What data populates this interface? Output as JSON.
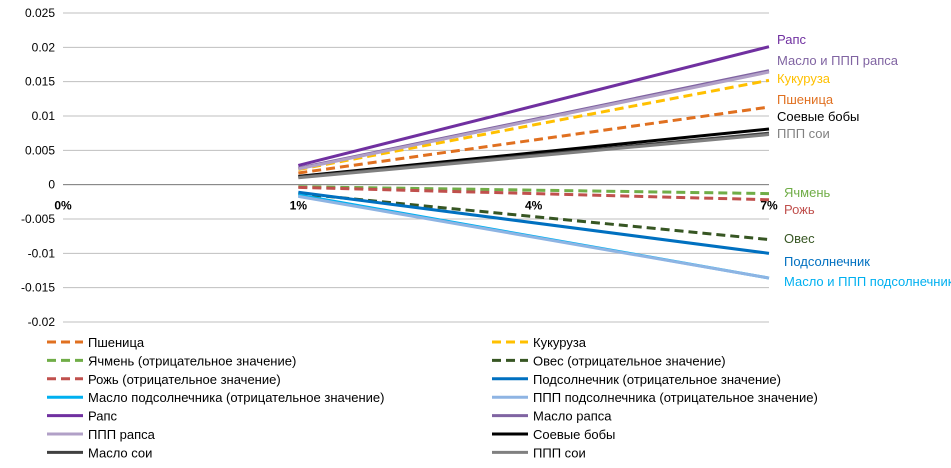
{
  "chart_data": {
    "type": "line",
    "categories": [
      "0%",
      "1%",
      "4%",
      "7%"
    ],
    "ylim": [
      -0.02,
      0.025
    ],
    "yticks": [
      "0.025",
      "0.02",
      "0.015",
      "0.01",
      "0.005",
      "0",
      "-0.005",
      "-0.01",
      "-0.015",
      "-0.02"
    ],
    "grid": true,
    "legend_position": "bottom",
    "series": [
      {
        "key": "wheat",
        "name": "Пшеница",
        "end_label": "Пшеница",
        "values": [
          null,
          0.0017,
          null,
          0.0113
        ],
        "color": "#E07020",
        "dash": "dash"
      },
      {
        "key": "corn",
        "name": "Кукуруза",
        "end_label": "Кукуруза",
        "values": [
          null,
          0.0022,
          null,
          0.0152
        ],
        "color": "#FFC000",
        "dash": "dash"
      },
      {
        "key": "barley",
        "name": "Ячмень (отрицательное значение)",
        "end_label": "Ячмень",
        "values": [
          null,
          -0.0003,
          null,
          -0.0013
        ],
        "color": "#70AD47",
        "dash": "dash"
      },
      {
        "key": "oats",
        "name": "Овес (отрицательное значение)",
        "end_label": "Овес",
        "values": [
          null,
          -0.0013,
          null,
          -0.008
        ],
        "color": "#375623",
        "dash": "dash"
      },
      {
        "key": "rye",
        "name": "Рожь (отрицательное значение)",
        "end_label": "Рожь",
        "values": [
          null,
          -0.0004,
          null,
          -0.0022
        ],
        "color": "#C0504D",
        "dash": "dash"
      },
      {
        "key": "sunflower",
        "name": "Подсолнечник (отрицательное значение)",
        "end_label": "Подсолнечник",
        "values": [
          null,
          -0.0011,
          null,
          -0.01
        ],
        "color": "#0070C0",
        "dash": "solid"
      },
      {
        "key": "sunoil",
        "name": "Масло подсолнечника (отрицательное значение)",
        "end_label": "Масло и ППП подсолнечника",
        "values": [
          null,
          -0.0015,
          null,
          -0.0136
        ],
        "color": "#00B0F0",
        "dash": "solid"
      },
      {
        "key": "sunmeal",
        "name": "ППП подсолнечника (отрицательное значение)",
        "end_label": "",
        "values": [
          null,
          -0.0017,
          null,
          -0.0136
        ],
        "color": "#8EB4E3",
        "dash": "solid"
      },
      {
        "key": "rapeseed",
        "name": "Рапс",
        "end_label": "Рапс",
        "values": [
          null,
          0.0028,
          null,
          0.0201
        ],
        "color": "#7030A0",
        "dash": "solid"
      },
      {
        "key": "rapeoil",
        "name": "Масло рапса",
        "end_label": "Масло и ППП рапса",
        "values": [
          null,
          0.0024,
          null,
          0.0166
        ],
        "color": "#8064A2",
        "dash": "solid"
      },
      {
        "key": "rapemeal",
        "name": "ППП рапса",
        "end_label": "",
        "values": [
          null,
          0.0023,
          null,
          0.0164
        ],
        "color": "#B1A0C7",
        "dash": "solid"
      },
      {
        "key": "soy",
        "name": "Соевые бобы",
        "end_label": "Соевые бобы",
        "values": [
          null,
          0.0012,
          null,
          0.0081
        ],
        "color": "#000000",
        "dash": "solid"
      },
      {
        "key": "soyoil",
        "name": "Масло сои",
        "end_label": "",
        "values": [
          null,
          0.0011,
          null,
          0.0075
        ],
        "color": "#404040",
        "dash": "solid"
      },
      {
        "key": "soymeal",
        "name": "ППП сои",
        "end_label": "ППП сои",
        "values": [
          null,
          0.001,
          null,
          0.0073
        ],
        "color": "#808080",
        "dash": "solid"
      }
    ]
  }
}
